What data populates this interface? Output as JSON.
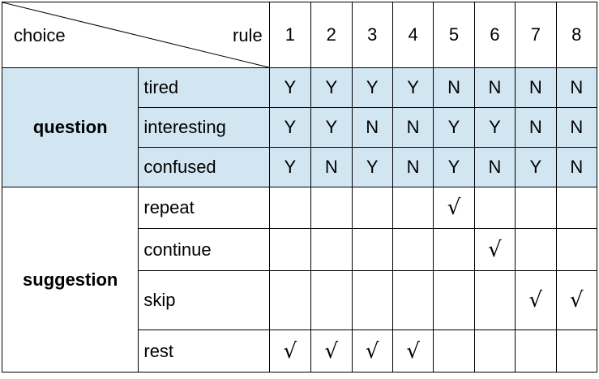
{
  "header": {
    "choice_label": "choice",
    "rule_label": "rule",
    "rules": [
      "1",
      "2",
      "3",
      "4",
      "5",
      "6",
      "7",
      "8"
    ]
  },
  "question": {
    "label": "question",
    "rows": [
      {
        "label": "tired",
        "values": [
          "Y",
          "Y",
          "Y",
          "Y",
          "N",
          "N",
          "N",
          "N"
        ]
      },
      {
        "label": "interesting",
        "values": [
          "Y",
          "Y",
          "N",
          "N",
          "Y",
          "Y",
          "N",
          "N"
        ]
      },
      {
        "label": "confused",
        "values": [
          "Y",
          "N",
          "Y",
          "N",
          "Y",
          "N",
          "Y",
          "N"
        ]
      }
    ]
  },
  "suggestion": {
    "label": "suggestion",
    "rows": [
      {
        "label": "repeat",
        "marks": [
          "",
          "",
          "",
          "",
          "√",
          "",
          "",
          ""
        ]
      },
      {
        "label": "continue",
        "marks": [
          "",
          "",
          "",
          "",
          "",
          "√",
          "",
          ""
        ]
      },
      {
        "label": "skip",
        "marks": [
          "",
          "",
          "",
          "",
          "",
          "",
          "√",
          "√"
        ]
      },
      {
        "label": "rest",
        "marks": [
          "√",
          "√",
          "√",
          "√",
          "",
          "",
          "",
          ""
        ]
      }
    ]
  },
  "colors": {
    "question_background": "#d2e6f2",
    "no_value": "#ff0000",
    "yes_value": "#000000",
    "border": "#000000"
  }
}
